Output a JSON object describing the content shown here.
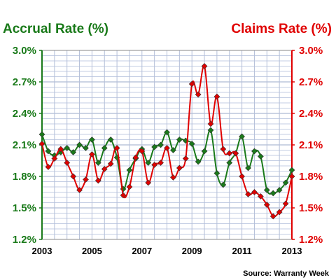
{
  "chart_data": {
    "type": "line",
    "source": "Source: Warranty Week",
    "left_axis": {
      "label": "Accrual Rate (%)",
      "color": "#1a7a1a",
      "range": [
        1.2,
        3.0
      ],
      "ticks": [
        "3.0%",
        "2.7%",
        "2.4%",
        "2.1%",
        "1.8%",
        "1.5%",
        "1.2%"
      ]
    },
    "right_axis": {
      "label": "Claims Rate (%)",
      "color": "#e00000",
      "range": [
        1.2,
        3.0
      ],
      "ticks": [
        "3.0%",
        "2.7%",
        "2.4%",
        "2.1%",
        "1.8%",
        "1.5%",
        "1.2%"
      ]
    },
    "x_axis": {
      "range": [
        2003,
        2013
      ],
      "ticks": [
        "2003",
        "2005",
        "2007",
        "2009",
        "2011",
        "2013"
      ]
    },
    "grid": true,
    "series": [
      {
        "name": "Accrual Rate (%)",
        "color": "#1a7a1a",
        "x": [
          2003.0,
          2003.25,
          2003.5,
          2003.75,
          2004.0,
          2004.25,
          2004.5,
          2004.75,
          2005.0,
          2005.25,
          2005.5,
          2005.75,
          2006.0,
          2006.25,
          2006.5,
          2006.75,
          2007.0,
          2007.25,
          2007.5,
          2007.75,
          2008.0,
          2008.25,
          2008.5,
          2008.75,
          2009.0,
          2009.25,
          2009.5,
          2009.75,
          2010.0,
          2010.25,
          2010.5,
          2010.75,
          2011.0,
          2011.25,
          2011.5,
          2011.75,
          2012.0,
          2012.25,
          2012.5,
          2012.75,
          2013.0
        ],
        "values": [
          2.2,
          2.04,
          2.0,
          2.03,
          2.07,
          2.03,
          2.1,
          2.07,
          2.15,
          1.93,
          2.07,
          2.15,
          1.98,
          1.68,
          1.86,
          1.97,
          2.06,
          1.93,
          2.08,
          2.1,
          2.22,
          2.05,
          2.15,
          2.14,
          2.11,
          1.94,
          2.04,
          2.24,
          1.83,
          1.72,
          1.93,
          2.02,
          2.18,
          1.88,
          2.04,
          1.99,
          1.67,
          1.64,
          1.67,
          1.74,
          1.86
        ]
      },
      {
        "name": "Claims Rate (%)",
        "color": "#e00000",
        "x": [
          2003.0,
          2003.25,
          2003.5,
          2003.75,
          2004.0,
          2004.25,
          2004.5,
          2004.75,
          2005.0,
          2005.25,
          2005.5,
          2005.75,
          2006.0,
          2006.25,
          2006.5,
          2006.75,
          2007.0,
          2007.25,
          2007.5,
          2007.75,
          2008.0,
          2008.25,
          2008.5,
          2008.75,
          2009.0,
          2009.25,
          2009.5,
          2009.75,
          2010.0,
          2010.25,
          2010.5,
          2010.75,
          2011.0,
          2011.25,
          2011.5,
          2011.75,
          2012.0,
          2012.25,
          2012.5,
          2012.75,
          2013.0
        ],
        "values": [
          2.11,
          1.89,
          1.97,
          2.06,
          1.93,
          1.8,
          1.67,
          1.77,
          2.01,
          1.76,
          1.87,
          1.92,
          2.07,
          1.62,
          1.7,
          1.98,
          2.04,
          1.74,
          1.91,
          1.93,
          2.07,
          1.79,
          1.88,
          1.97,
          2.68,
          2.58,
          2.85,
          2.3,
          2.56,
          2.06,
          2.02,
          2.02,
          1.8,
          1.63,
          1.65,
          1.61,
          1.53,
          1.42,
          1.46,
          1.54,
          1.8
        ]
      }
    ]
  }
}
